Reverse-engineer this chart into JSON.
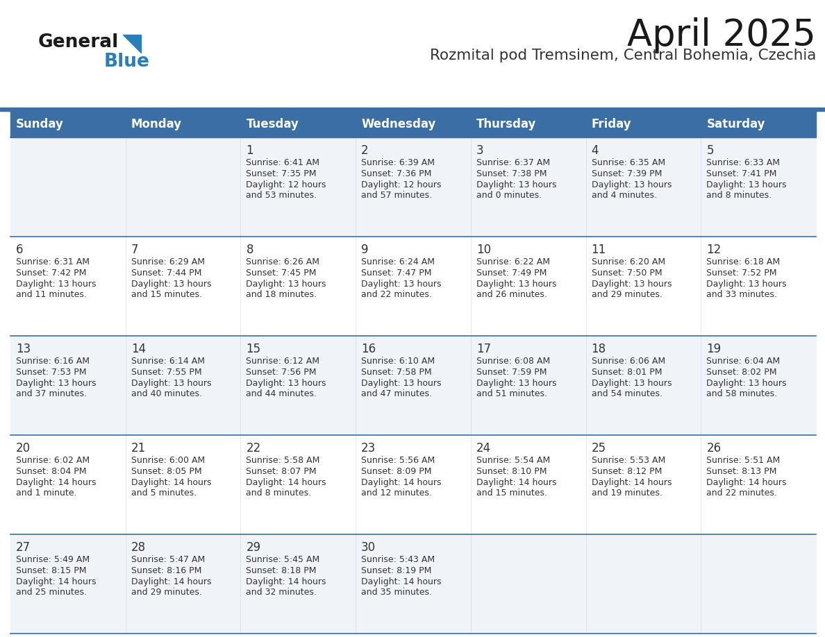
{
  "title": "April 2025",
  "subtitle": "Rozmital pod Tremsinem, Central Bohemia, Czechia",
  "days_of_week": [
    "Sunday",
    "Monday",
    "Tuesday",
    "Wednesday",
    "Thursday",
    "Friday",
    "Saturday"
  ],
  "header_bg": "#3B6EA5",
  "header_text": "#FFFFFF",
  "row_bg_light": "#F0F4F8",
  "row_bg_white": "#FFFFFF",
  "line_color": "#3B6EA5",
  "text_color": "#333333",
  "title_color": "#1a1a1a",
  "subtitle_color": "#333333",
  "logo_general_color": "#1a1a1a",
  "logo_blue_color": "#2980B9",
  "calendar_data": [
    [
      {
        "day": null,
        "sunrise": null,
        "sunset": null,
        "daylight_line1": null,
        "daylight_line2": null
      },
      {
        "day": null,
        "sunrise": null,
        "sunset": null,
        "daylight_line1": null,
        "daylight_line2": null
      },
      {
        "day": 1,
        "sunrise": "6:41 AM",
        "sunset": "7:35 PM",
        "daylight_line1": "Daylight: 12 hours",
        "daylight_line2": "and 53 minutes."
      },
      {
        "day": 2,
        "sunrise": "6:39 AM",
        "sunset": "7:36 PM",
        "daylight_line1": "Daylight: 12 hours",
        "daylight_line2": "and 57 minutes."
      },
      {
        "day": 3,
        "sunrise": "6:37 AM",
        "sunset": "7:38 PM",
        "daylight_line1": "Daylight: 13 hours",
        "daylight_line2": "and 0 minutes."
      },
      {
        "day": 4,
        "sunrise": "6:35 AM",
        "sunset": "7:39 PM",
        "daylight_line1": "Daylight: 13 hours",
        "daylight_line2": "and 4 minutes."
      },
      {
        "day": 5,
        "sunrise": "6:33 AM",
        "sunset": "7:41 PM",
        "daylight_line1": "Daylight: 13 hours",
        "daylight_line2": "and 8 minutes."
      }
    ],
    [
      {
        "day": 6,
        "sunrise": "6:31 AM",
        "sunset": "7:42 PM",
        "daylight_line1": "Daylight: 13 hours",
        "daylight_line2": "and 11 minutes."
      },
      {
        "day": 7,
        "sunrise": "6:29 AM",
        "sunset": "7:44 PM",
        "daylight_line1": "Daylight: 13 hours",
        "daylight_line2": "and 15 minutes."
      },
      {
        "day": 8,
        "sunrise": "6:26 AM",
        "sunset": "7:45 PM",
        "daylight_line1": "Daylight: 13 hours",
        "daylight_line2": "and 18 minutes."
      },
      {
        "day": 9,
        "sunrise": "6:24 AM",
        "sunset": "7:47 PM",
        "daylight_line1": "Daylight: 13 hours",
        "daylight_line2": "and 22 minutes."
      },
      {
        "day": 10,
        "sunrise": "6:22 AM",
        "sunset": "7:49 PM",
        "daylight_line1": "Daylight: 13 hours",
        "daylight_line2": "and 26 minutes."
      },
      {
        "day": 11,
        "sunrise": "6:20 AM",
        "sunset": "7:50 PM",
        "daylight_line1": "Daylight: 13 hours",
        "daylight_line2": "and 29 minutes."
      },
      {
        "day": 12,
        "sunrise": "6:18 AM",
        "sunset": "7:52 PM",
        "daylight_line1": "Daylight: 13 hours",
        "daylight_line2": "and 33 minutes."
      }
    ],
    [
      {
        "day": 13,
        "sunrise": "6:16 AM",
        "sunset": "7:53 PM",
        "daylight_line1": "Daylight: 13 hours",
        "daylight_line2": "and 37 minutes."
      },
      {
        "day": 14,
        "sunrise": "6:14 AM",
        "sunset": "7:55 PM",
        "daylight_line1": "Daylight: 13 hours",
        "daylight_line2": "and 40 minutes."
      },
      {
        "day": 15,
        "sunrise": "6:12 AM",
        "sunset": "7:56 PM",
        "daylight_line1": "Daylight: 13 hours",
        "daylight_line2": "and 44 minutes."
      },
      {
        "day": 16,
        "sunrise": "6:10 AM",
        "sunset": "7:58 PM",
        "daylight_line1": "Daylight: 13 hours",
        "daylight_line2": "and 47 minutes."
      },
      {
        "day": 17,
        "sunrise": "6:08 AM",
        "sunset": "7:59 PM",
        "daylight_line1": "Daylight: 13 hours",
        "daylight_line2": "and 51 minutes."
      },
      {
        "day": 18,
        "sunrise": "6:06 AM",
        "sunset": "8:01 PM",
        "daylight_line1": "Daylight: 13 hours",
        "daylight_line2": "and 54 minutes."
      },
      {
        "day": 19,
        "sunrise": "6:04 AM",
        "sunset": "8:02 PM",
        "daylight_line1": "Daylight: 13 hours",
        "daylight_line2": "and 58 minutes."
      }
    ],
    [
      {
        "day": 20,
        "sunrise": "6:02 AM",
        "sunset": "8:04 PM",
        "daylight_line1": "Daylight: 14 hours",
        "daylight_line2": "and 1 minute."
      },
      {
        "day": 21,
        "sunrise": "6:00 AM",
        "sunset": "8:05 PM",
        "daylight_line1": "Daylight: 14 hours",
        "daylight_line2": "and 5 minutes."
      },
      {
        "day": 22,
        "sunrise": "5:58 AM",
        "sunset": "8:07 PM",
        "daylight_line1": "Daylight: 14 hours",
        "daylight_line2": "and 8 minutes."
      },
      {
        "day": 23,
        "sunrise": "5:56 AM",
        "sunset": "8:09 PM",
        "daylight_line1": "Daylight: 14 hours",
        "daylight_line2": "and 12 minutes."
      },
      {
        "day": 24,
        "sunrise": "5:54 AM",
        "sunset": "8:10 PM",
        "daylight_line1": "Daylight: 14 hours",
        "daylight_line2": "and 15 minutes."
      },
      {
        "day": 25,
        "sunrise": "5:53 AM",
        "sunset": "8:12 PM",
        "daylight_line1": "Daylight: 14 hours",
        "daylight_line2": "and 19 minutes."
      },
      {
        "day": 26,
        "sunrise": "5:51 AM",
        "sunset": "8:13 PM",
        "daylight_line1": "Daylight: 14 hours",
        "daylight_line2": "and 22 minutes."
      }
    ],
    [
      {
        "day": 27,
        "sunrise": "5:49 AM",
        "sunset": "8:15 PM",
        "daylight_line1": "Daylight: 14 hours",
        "daylight_line2": "and 25 minutes."
      },
      {
        "day": 28,
        "sunrise": "5:47 AM",
        "sunset": "8:16 PM",
        "daylight_line1": "Daylight: 14 hours",
        "daylight_line2": "and 29 minutes."
      },
      {
        "day": 29,
        "sunrise": "5:45 AM",
        "sunset": "8:18 PM",
        "daylight_line1": "Daylight: 14 hours",
        "daylight_line2": "and 32 minutes."
      },
      {
        "day": 30,
        "sunrise": "5:43 AM",
        "sunset": "8:19 PM",
        "daylight_line1": "Daylight: 14 hours",
        "daylight_line2": "and 35 minutes."
      },
      {
        "day": null,
        "sunrise": null,
        "sunset": null,
        "daylight_line1": null,
        "daylight_line2": null
      },
      {
        "day": null,
        "sunrise": null,
        "sunset": null,
        "daylight_line1": null,
        "daylight_line2": null
      },
      {
        "day": null,
        "sunrise": null,
        "sunset": null,
        "daylight_line1": null,
        "daylight_line2": null
      }
    ]
  ]
}
